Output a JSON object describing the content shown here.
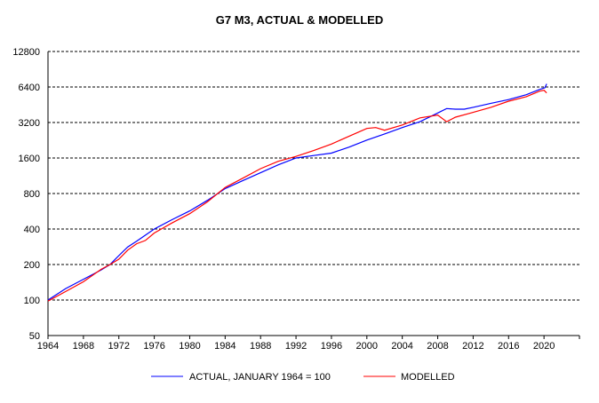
{
  "chart_data": {
    "type": "line",
    "title": "G7 M3, ACTUAL & MODELLED",
    "xlabel": "",
    "ylabel": "",
    "yscale": "log2",
    "ylim": [
      50,
      12800
    ],
    "xlim": [
      1964,
      2024
    ],
    "yticks": [
      50,
      100,
      200,
      400,
      800,
      1600,
      3200,
      6400,
      12800
    ],
    "ytick_labels": [
      "50",
      "100",
      "200",
      "400",
      "800",
      "1600",
      "3200",
      "6400",
      "12800"
    ],
    "xticks": [
      1964,
      1968,
      1972,
      1976,
      1980,
      1984,
      1988,
      1992,
      1996,
      2000,
      2004,
      2008,
      2012,
      2016,
      2020
    ],
    "xtick_labels": [
      "1964",
      "1968",
      "1972",
      "1976",
      "1980",
      "1984",
      "1988",
      "1992",
      "1996",
      "2000",
      "2004",
      "2008",
      "2012",
      "2016",
      "2020"
    ],
    "grid": "horizontal dashed",
    "legend_position": "bottom",
    "series": [
      {
        "name": "ACTUAL, JANUARY 1964 = 100",
        "color": "#0000ff",
        "x": [
          1964,
          1966,
          1968,
          1970,
          1971,
          1972,
          1973,
          1974,
          1976,
          1978,
          1980,
          1982,
          1984,
          1986,
          1988,
          1990,
          1992,
          1994,
          1996,
          1998,
          2000,
          2002,
          2004,
          2006,
          2008,
          2009,
          2010,
          2011,
          2012,
          2014,
          2016,
          2018,
          2019.5,
          2020.1,
          2020.3
        ],
        "values": [
          100,
          125,
          150,
          180,
          200,
          238,
          282,
          315,
          400,
          480,
          570,
          700,
          880,
          1030,
          1200,
          1400,
          1600,
          1680,
          1760,
          1980,
          2270,
          2560,
          2900,
          3250,
          3850,
          4200,
          4150,
          4150,
          4300,
          4650,
          5000,
          5500,
          6100,
          6300,
          6800
        ]
      },
      {
        "name": "MODELLED",
        "color": "#ff0000",
        "x": [
          1964,
          1966,
          1968,
          1970,
          1971,
          1972,
          1973,
          1974,
          1975,
          1976,
          1978,
          1980,
          1982,
          1984,
          1986,
          1988,
          1990,
          1992,
          1994,
          1996,
          1998,
          2000,
          2001,
          2002,
          2004,
          2006,
          2008,
          2009,
          2010,
          2012,
          2014,
          2016,
          2018,
          2019.5,
          2020,
          2020.3
        ],
        "values": [
          98,
          118,
          143,
          182,
          200,
          222,
          265,
          300,
          320,
          370,
          450,
          540,
          680,
          900,
          1080,
          1300,
          1500,
          1650,
          1850,
          2100,
          2450,
          2850,
          2900,
          2750,
          3050,
          3500,
          3700,
          3250,
          3550,
          3900,
          4300,
          4850,
          5300,
          5900,
          6000,
          5700
        ]
      }
    ]
  }
}
